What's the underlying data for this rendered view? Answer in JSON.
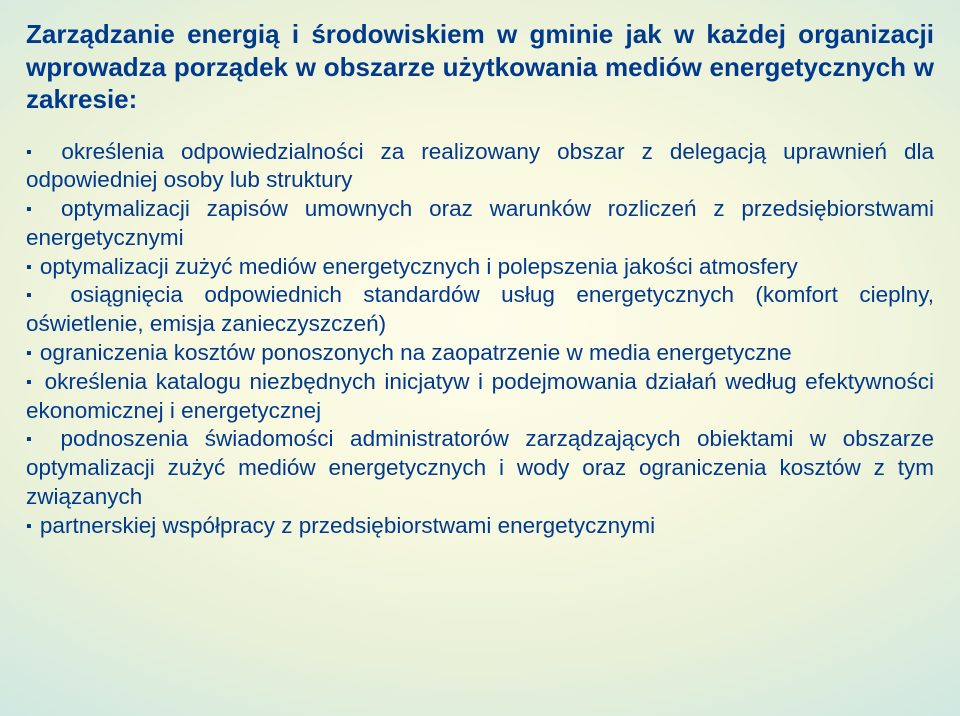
{
  "title": "Zarządzanie energią i środowiskiem w gminie jak w każdej organizacji wprowadza porządek w obszarze użytkowania mediów energetycznych w zakresie:",
  "items": [
    "określenia odpowiedzialności za realizowany obszar z delegacją uprawnień dla  odpowiedniej osoby lub struktury",
    "optymalizacji zapisów umownych oraz warunków rozliczeń z przedsiębiorstwami energetycznymi",
    "optymalizacji zużyć mediów energetycznych i polepszenia jakości atmosfery",
    "osiągnięcia odpowiednich standardów usług energetycznych (komfort cieplny, oświetlenie, emisja zanieczyszczeń)",
    "ograniczenia kosztów ponoszonych na zaopatrzenie w media energetyczne",
    "określenia katalogu niezbędnych inicjatyw i podejmowania działań według efektywności ekonomicznej i energetycznej",
    "podnoszenia świadomości administratorów zarządzających obiektami w obszarze optymalizacji zużyć mediów energetycznych i wody oraz ograniczenia kosztów z tym związanych",
    "partnerskiej współpracy z przedsiębiorstwami energetycznymi"
  ],
  "colors": {
    "text": "#003a8c",
    "bg_center": "#fdfdeb",
    "bg_mid": "#c5e5e5",
    "bg_edge": "#6ac5e0"
  },
  "typography": {
    "title_fontsize": 26,
    "body_fontsize": 22.5,
    "font_family": "Arial",
    "title_weight": "bold"
  }
}
